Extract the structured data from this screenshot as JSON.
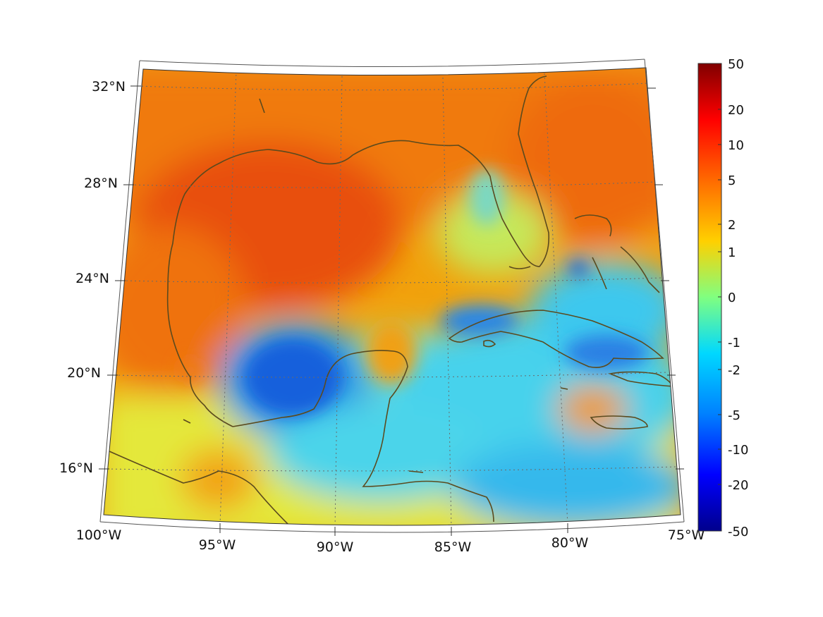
{
  "map": {
    "projection": "lambert-conic",
    "lon_labels": [
      "100°W",
      "95°W",
      "90°W",
      "85°W",
      "80°W",
      "75°W"
    ],
    "lat_labels": [
      "32°N",
      "28°N",
      "24°N",
      "20°N",
      "16°N"
    ],
    "coastline_color": "#5b4a1e",
    "grid": "dotted"
  },
  "colorbar": {
    "labels": [
      "50",
      "20",
      "10",
      "5",
      "2",
      "1",
      "0",
      "-1",
      "-2",
      "-5",
      "-10",
      "-20",
      "-50"
    ],
    "colormap": "jet",
    "scale": "symmetric-log"
  },
  "colors": {
    "warm": "#f07010",
    "hot": "#e84a0a",
    "mid": "#f2a60d",
    "yellow": "#e8e832",
    "cyan": "#32d8e8",
    "blue": "#1874e6",
    "deep_blue": "#0a3ad0"
  }
}
